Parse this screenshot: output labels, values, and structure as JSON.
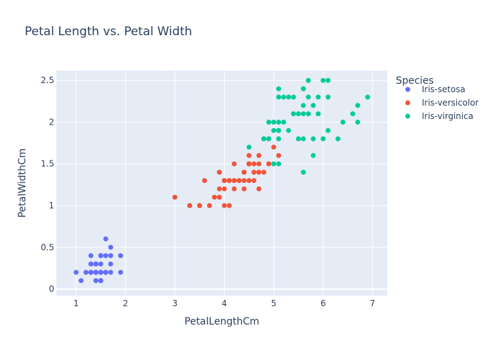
{
  "chart_data": {
    "type": "scatter",
    "title": "Petal Length vs. Petal Width",
    "xlabel": "PetalLengthCm",
    "ylabel": "PetalWidthCm",
    "xlim": [
      0.6,
      7.3
    ],
    "ylim": [
      -0.08,
      2.62
    ],
    "xticks": [
      1,
      2,
      3,
      4,
      5,
      6,
      7
    ],
    "yticks": [
      0,
      0.5,
      1,
      1.5,
      2,
      2.5
    ],
    "grid": true,
    "legend_title": "Species",
    "legend_position": "right",
    "series": [
      {
        "name": "Iris-setosa",
        "color": "#636efa",
        "points": [
          [
            1.4,
            0.2
          ],
          [
            1.4,
            0.2
          ],
          [
            1.3,
            0.2
          ],
          [
            1.5,
            0.2
          ],
          [
            1.4,
            0.2
          ],
          [
            1.7,
            0.4
          ],
          [
            1.4,
            0.3
          ],
          [
            1.5,
            0.2
          ],
          [
            1.4,
            0.2
          ],
          [
            1.5,
            0.1
          ],
          [
            1.5,
            0.2
          ],
          [
            1.6,
            0.2
          ],
          [
            1.4,
            0.1
          ],
          [
            1.1,
            0.1
          ],
          [
            1.2,
            0.2
          ],
          [
            1.5,
            0.4
          ],
          [
            1.3,
            0.4
          ],
          [
            1.4,
            0.3
          ],
          [
            1.7,
            0.3
          ],
          [
            1.5,
            0.3
          ],
          [
            1.7,
            0.2
          ],
          [
            1.5,
            0.4
          ],
          [
            1.0,
            0.2
          ],
          [
            1.7,
            0.5
          ],
          [
            1.9,
            0.2
          ],
          [
            1.6,
            0.2
          ],
          [
            1.6,
            0.4
          ],
          [
            1.5,
            0.2
          ],
          [
            1.4,
            0.2
          ],
          [
            1.6,
            0.2
          ],
          [
            1.6,
            0.2
          ],
          [
            1.5,
            0.4
          ],
          [
            1.5,
            0.1
          ],
          [
            1.4,
            0.2
          ],
          [
            1.5,
            0.1
          ],
          [
            1.2,
            0.2
          ],
          [
            1.3,
            0.2
          ],
          [
            1.5,
            0.1
          ],
          [
            1.3,
            0.2
          ],
          [
            1.5,
            0.2
          ],
          [
            1.3,
            0.3
          ],
          [
            1.3,
            0.3
          ],
          [
            1.3,
            0.2
          ],
          [
            1.6,
            0.6
          ],
          [
            1.9,
            0.4
          ],
          [
            1.4,
            0.3
          ],
          [
            1.6,
            0.2
          ],
          [
            1.4,
            0.2
          ],
          [
            1.5,
            0.2
          ],
          [
            1.4,
            0.2
          ]
        ]
      },
      {
        "name": "Iris-versicolor",
        "color": "#ef553b",
        "points": [
          [
            4.7,
            1.4
          ],
          [
            4.5,
            1.5
          ],
          [
            4.9,
            1.5
          ],
          [
            4.0,
            1.3
          ],
          [
            4.6,
            1.5
          ],
          [
            4.5,
            1.3
          ],
          [
            4.7,
            1.6
          ],
          [
            3.3,
            1.0
          ],
          [
            4.6,
            1.3
          ],
          [
            3.9,
            1.4
          ],
          [
            3.5,
            1.0
          ],
          [
            4.2,
            1.5
          ],
          [
            4.0,
            1.0
          ],
          [
            4.7,
            1.4
          ],
          [
            3.6,
            1.3
          ],
          [
            4.4,
            1.4
          ],
          [
            4.5,
            1.5
          ],
          [
            4.1,
            1.0
          ],
          [
            4.5,
            1.5
          ],
          [
            3.9,
            1.1
          ],
          [
            4.8,
            1.8
          ],
          [
            4.0,
            1.3
          ],
          [
            4.9,
            1.5
          ],
          [
            4.7,
            1.2
          ],
          [
            4.3,
            1.3
          ],
          [
            4.4,
            1.4
          ],
          [
            4.8,
            1.4
          ],
          [
            5.0,
            1.7
          ],
          [
            4.5,
            1.5
          ],
          [
            3.5,
            1.0
          ],
          [
            3.8,
            1.1
          ],
          [
            3.7,
            1.0
          ],
          [
            3.9,
            1.2
          ],
          [
            5.1,
            1.6
          ],
          [
            4.5,
            1.5
          ],
          [
            4.5,
            1.6
          ],
          [
            4.7,
            1.5
          ],
          [
            4.4,
            1.3
          ],
          [
            4.1,
            1.3
          ],
          [
            4.0,
            1.3
          ],
          [
            4.4,
            1.2
          ],
          [
            4.6,
            1.4
          ],
          [
            4.0,
            1.2
          ],
          [
            3.3,
            1.0
          ],
          [
            4.2,
            1.3
          ],
          [
            4.2,
            1.2
          ],
          [
            4.2,
            1.3
          ],
          [
            4.3,
            1.3
          ],
          [
            3.0,
            1.1
          ],
          [
            4.1,
            1.3
          ]
        ]
      },
      {
        "name": "Iris-virginica",
        "color": "#00cc96",
        "points": [
          [
            6.0,
            2.5
          ],
          [
            5.1,
            1.9
          ],
          [
            5.9,
            2.1
          ],
          [
            5.6,
            1.8
          ],
          [
            5.8,
            2.2
          ],
          [
            6.6,
            2.1
          ],
          [
            4.5,
            1.7
          ],
          [
            6.3,
            1.8
          ],
          [
            5.8,
            1.8
          ],
          [
            6.1,
            2.5
          ],
          [
            5.1,
            2.0
          ],
          [
            5.3,
            1.9
          ],
          [
            5.5,
            2.1
          ],
          [
            5.0,
            2.0
          ],
          [
            5.1,
            2.4
          ],
          [
            5.3,
            2.3
          ],
          [
            5.5,
            1.8
          ],
          [
            6.7,
            2.2
          ],
          [
            6.9,
            2.3
          ],
          [
            5.0,
            1.5
          ],
          [
            5.7,
            2.3
          ],
          [
            4.9,
            2.0
          ],
          [
            6.7,
            2.0
          ],
          [
            4.9,
            1.8
          ],
          [
            5.7,
            2.1
          ],
          [
            6.0,
            1.8
          ],
          [
            4.8,
            1.8
          ],
          [
            4.9,
            1.8
          ],
          [
            5.6,
            2.1
          ],
          [
            5.8,
            1.6
          ],
          [
            6.1,
            1.9
          ],
          [
            6.4,
            2.0
          ],
          [
            5.6,
            2.2
          ],
          [
            5.1,
            1.5
          ],
          [
            5.6,
            1.4
          ],
          [
            6.1,
            2.3
          ],
          [
            5.6,
            2.4
          ],
          [
            5.5,
            1.8
          ],
          [
            4.8,
            1.8
          ],
          [
            5.4,
            2.1
          ],
          [
            5.6,
            2.4
          ],
          [
            5.1,
            2.3
          ],
          [
            5.1,
            1.9
          ],
          [
            5.9,
            2.3
          ],
          [
            5.7,
            2.5
          ],
          [
            5.2,
            2.3
          ],
          [
            5.0,
            1.9
          ],
          [
            5.2,
            2.0
          ],
          [
            5.4,
            2.3
          ],
          [
            5.1,
            1.8
          ]
        ]
      }
    ]
  }
}
